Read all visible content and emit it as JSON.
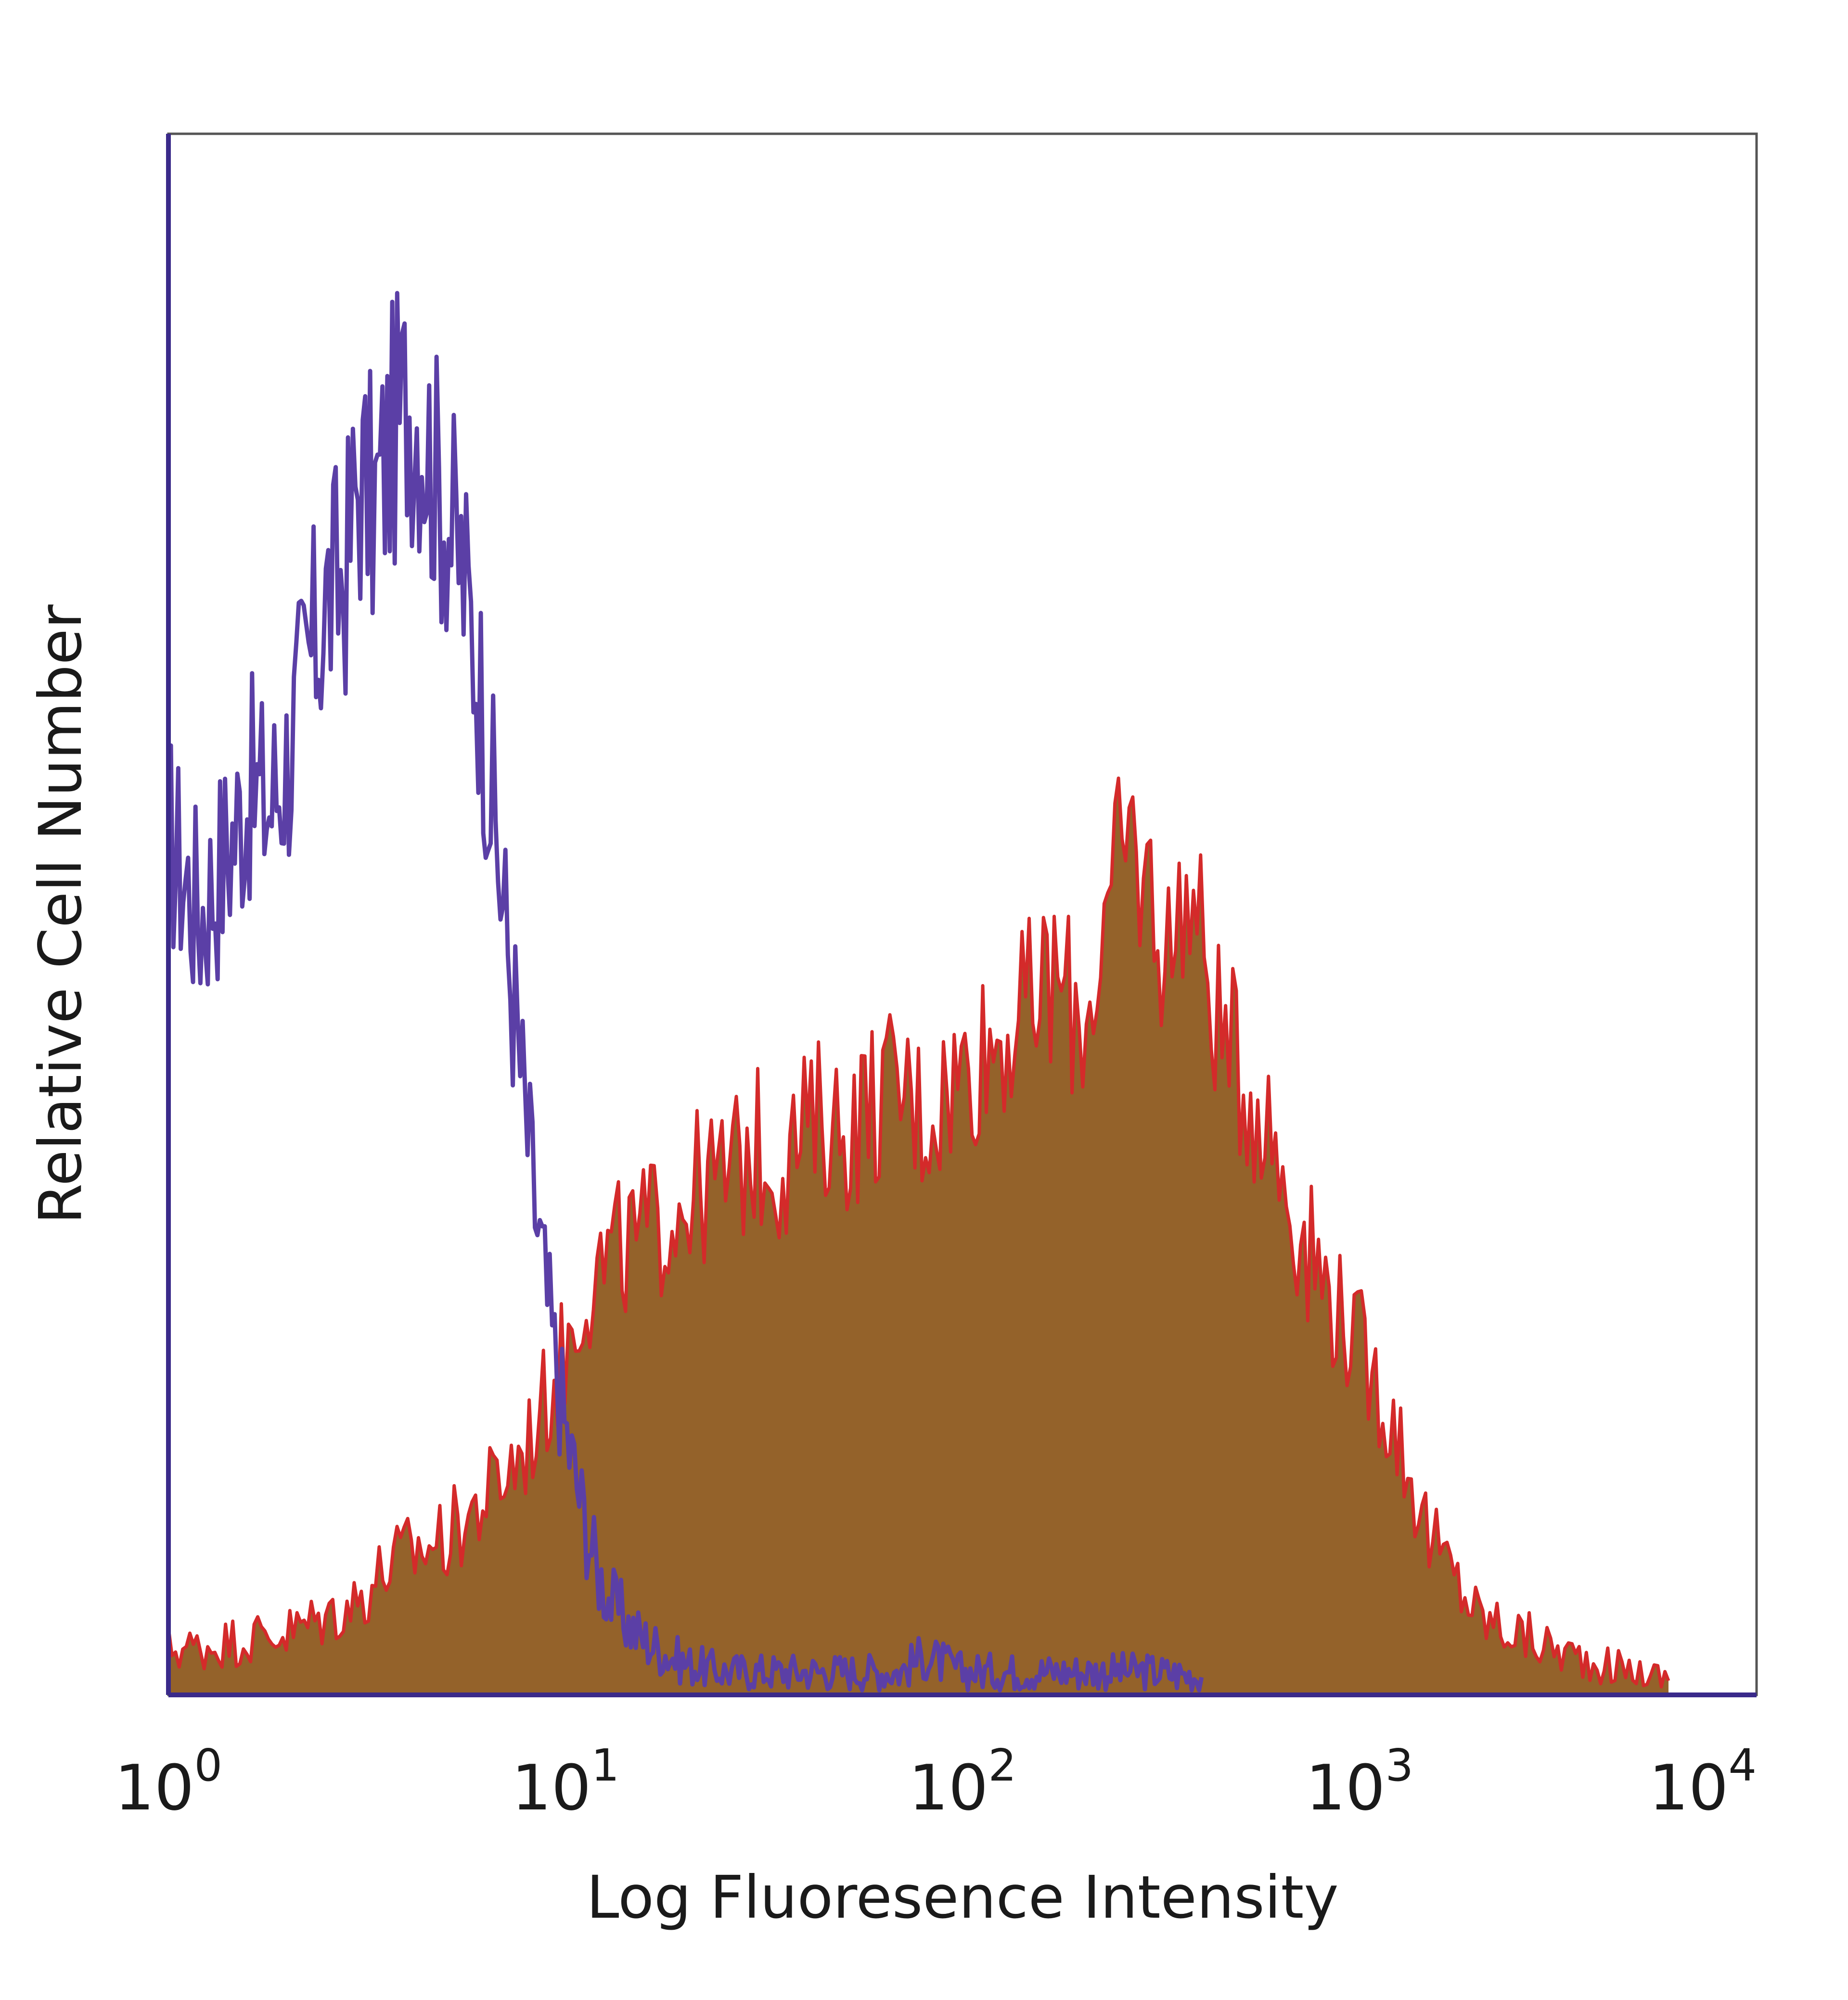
{
  "chart_data": {
    "type": "area",
    "title": "",
    "xlabel": "Log Fluoresence Intensity",
    "ylabel": "Relative Cell Number",
    "x_scale": "log",
    "xlim": [
      1,
      10000
    ],
    "ylim": [
      0,
      100
    ],
    "grid": false,
    "x_ticks": [
      {
        "value": 1,
        "base": "10",
        "exp": "0"
      },
      {
        "value": 10,
        "base": "10",
        "exp": "1"
      },
      {
        "value": 100,
        "base": "10",
        "exp": "2"
      },
      {
        "value": 1000,
        "base": "10",
        "exp": "3"
      },
      {
        "value": 10000,
        "base": "10",
        "exp": "4"
      }
    ],
    "series": [
      {
        "style": "outline",
        "color": "#5b3fa6",
        "x": [
          1,
          1.2,
          1.4,
          1.6,
          1.8,
          2,
          2.2,
          2.5,
          2.8,
          3,
          3.3,
          3.6,
          4,
          4.3,
          4.7,
          5,
          5.5,
          6,
          6.5,
          7,
          7.5,
          8,
          8.5,
          9,
          10,
          11,
          12,
          13,
          15,
          17,
          20,
          25,
          30,
          40,
          50,
          70,
          80,
          100,
          150,
          200,
          300,
          400
        ],
        "y": [
          55,
          50,
          54,
          58,
          57,
          60,
          65,
          70,
          72,
          78,
          76,
          80,
          83,
          82,
          78,
          76,
          72,
          66,
          58,
          50,
          43,
          36,
          30,
          25,
          17,
          12,
          8,
          6,
          4,
          3,
          2,
          1.5,
          1.5,
          1.5,
          1.5,
          1.5,
          2.5,
          1.5,
          1.5,
          1.5,
          1.5,
          1.2
        ]
      },
      {
        "style": "filled",
        "color": "#d42a2a",
        "fill": "#94622a",
        "x": [
          1,
          1.2,
          1.5,
          2,
          2.5,
          3,
          3.5,
          4,
          5,
          6,
          7,
          8,
          9,
          10,
          11,
          12,
          13,
          15,
          17,
          20,
          25,
          30,
          35,
          40,
          45,
          50,
          60,
          70,
          80,
          100,
          120,
          150,
          170,
          200,
          230,
          260,
          300,
          330,
          360,
          400,
          450,
          500,
          600,
          700,
          800,
          1000,
          1200,
          1500,
          2000,
          3000,
          4000,
          6000
        ],
        "y": [
          3,
          3,
          3.5,
          4,
          5,
          6,
          8,
          9,
          10,
          12,
          14,
          16,
          19,
          22,
          26,
          27,
          28,
          29,
          30,
          32,
          33,
          35,
          34,
          36,
          37,
          36,
          38,
          39,
          37,
          40,
          42,
          44,
          46,
          43,
          49,
          55,
          51,
          47,
          52,
          48,
          42,
          40,
          36,
          30,
          27,
          22,
          18,
          10,
          5,
          3,
          2,
          1
        ]
      }
    ]
  }
}
